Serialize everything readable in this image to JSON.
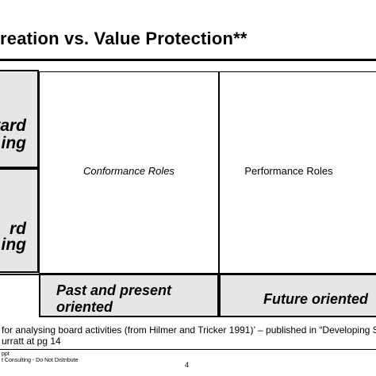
{
  "slide": {
    "title": "reation vs. Value Protection**",
    "left_top_label_line1": "vard",
    "left_top_label_line2": "ing",
    "left_bottom_label_line1": "rd",
    "left_bottom_label_line2": "ing",
    "conformance_label": "Conformance Roles",
    "performance_label": "Performance Roles",
    "past_label_line1": "Past and present",
    "past_label_line2": "oriented",
    "future_label": "Future oriented",
    "footnote_line1": "for analysing board activities (from Hilmer and Tricker 1991)’ – published in “Developing S",
    "footnote_line2": "urratt at pg 14",
    "footer_line1": "ppt",
    "footer_line2": "t Consulting - Do Not Distribute",
    "page_number": "4"
  }
}
